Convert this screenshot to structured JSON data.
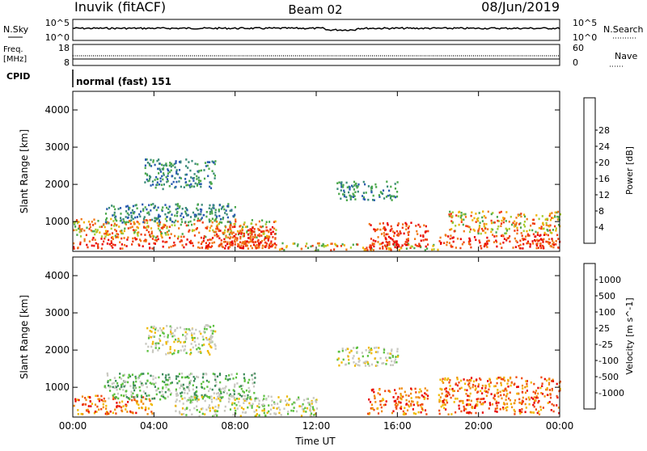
{
  "header": {
    "site": "Inuvik (fitACF)",
    "beam": "Beam 02",
    "date": "08/Jun/2019"
  },
  "nsky_panel": {
    "left_label": "N.Sky",
    "left_ticks": [
      "10^5",
      "10^0"
    ],
    "right_label": "N.Search",
    "right_ticks": [
      "10^5",
      "10^0"
    ]
  },
  "freq_panel": {
    "left_label_line1": "Freq.",
    "left_label_line2": "[MHz]",
    "left_ticks": [
      "18",
      "8"
    ],
    "right_label": "Nave",
    "right_ticks": [
      "60",
      "0"
    ]
  },
  "cpid": {
    "label": "CPID",
    "value": "normal (fast) 151"
  },
  "chart_data": [
    {
      "type": "heatmap",
      "panel": "power",
      "ylabel": "Slant Range [km]",
      "xlabel": "Time UT",
      "x_ticks": [
        "00:00",
        "04:00",
        "08:00",
        "12:00",
        "16:00",
        "20:00",
        "00:00"
      ],
      "y_ticks": [
        1000,
        2000,
        3000,
        4000
      ],
      "ylim": [
        200,
        4500
      ],
      "xlim_hours": [
        0,
        24
      ],
      "colorbar": {
        "label": "Power [dB]",
        "ticks": [
          "4",
          "8",
          "12",
          "16",
          "20",
          "24",
          "28"
        ],
        "colors": [
          "#1010e0",
          "#2a5bb0",
          "#3a8a78",
          "#4ca84c",
          "#a8cc30",
          "#f0b000",
          "#f07818",
          "#f03c10",
          "#e80000"
        ]
      },
      "regions": [
        {
          "t0": 0.0,
          "t1": 10.0,
          "r0": 300,
          "r1": 600,
          "level": "high"
        },
        {
          "t0": 0.0,
          "t1": 10.0,
          "r0": 600,
          "r1": 1100,
          "level": "mid"
        },
        {
          "t0": 1.5,
          "t1": 8.0,
          "r0": 1000,
          "r1": 1500,
          "level": "low"
        },
        {
          "t0": 3.5,
          "t1": 7.0,
          "r0": 1900,
          "r1": 2700,
          "level": "low"
        },
        {
          "t0": 7.0,
          "t1": 10.0,
          "r0": 300,
          "r1": 900,
          "level": "high"
        },
        {
          "t0": 10.0,
          "t1": 18.0,
          "r0": 250,
          "r1": 450,
          "level": "mid"
        },
        {
          "t0": 13.0,
          "t1": 16.0,
          "r0": 1600,
          "r1": 2100,
          "level": "low"
        },
        {
          "t0": 14.5,
          "t1": 17.5,
          "r0": 300,
          "r1": 1000,
          "level": "high"
        },
        {
          "t0": 18.0,
          "t1": 24.0,
          "r0": 300,
          "r1": 700,
          "level": "high"
        },
        {
          "t0": 18.5,
          "t1": 24.0,
          "r0": 700,
          "r1": 1300,
          "level": "mid"
        }
      ]
    },
    {
      "type": "heatmap",
      "panel": "velocity",
      "ylabel": "Slant Range [km]",
      "xlabel": "Time UT",
      "x_ticks": [
        "00:00",
        "04:00",
        "08:00",
        "12:00",
        "16:00",
        "20:00",
        "00:00"
      ],
      "y_ticks": [
        1000,
        2000,
        3000,
        4000
      ],
      "ylim": [
        200,
        4500
      ],
      "xlim_hours": [
        0,
        24
      ],
      "colorbar": {
        "label": "Velocity [m s^-1]",
        "ticks": [
          "1000",
          "500",
          "100",
          "25",
          "-25",
          "-100",
          "-500",
          "-1000"
        ],
        "colors": [
          "#2838c8",
          "#2a6fb0",
          "#3a8a58",
          "#5cc040",
          "#c8c8c0",
          "#f0b800",
          "#f08c10",
          "#f04a10",
          "#e80000"
        ]
      },
      "regions": [
        {
          "t0": 0.0,
          "t1": 4.0,
          "r0": 300,
          "r1": 800,
          "level": "neg"
        },
        {
          "t0": 1.5,
          "t1": 9.0,
          "r0": 700,
          "r1": 1400,
          "level": "pos"
        },
        {
          "t0": 3.5,
          "t1": 7.0,
          "r0": 1900,
          "r1": 2700,
          "level": "zero"
        },
        {
          "t0": 5.0,
          "t1": 12.0,
          "r0": 250,
          "r1": 800,
          "level": "zero"
        },
        {
          "t0": 13.0,
          "t1": 16.0,
          "r0": 1600,
          "r1": 2100,
          "level": "zero"
        },
        {
          "t0": 14.5,
          "t1": 17.5,
          "r0": 300,
          "r1": 1000,
          "level": "neg"
        },
        {
          "t0": 18.0,
          "t1": 24.0,
          "r0": 300,
          "r1": 1300,
          "level": "neg"
        }
      ]
    }
  ]
}
